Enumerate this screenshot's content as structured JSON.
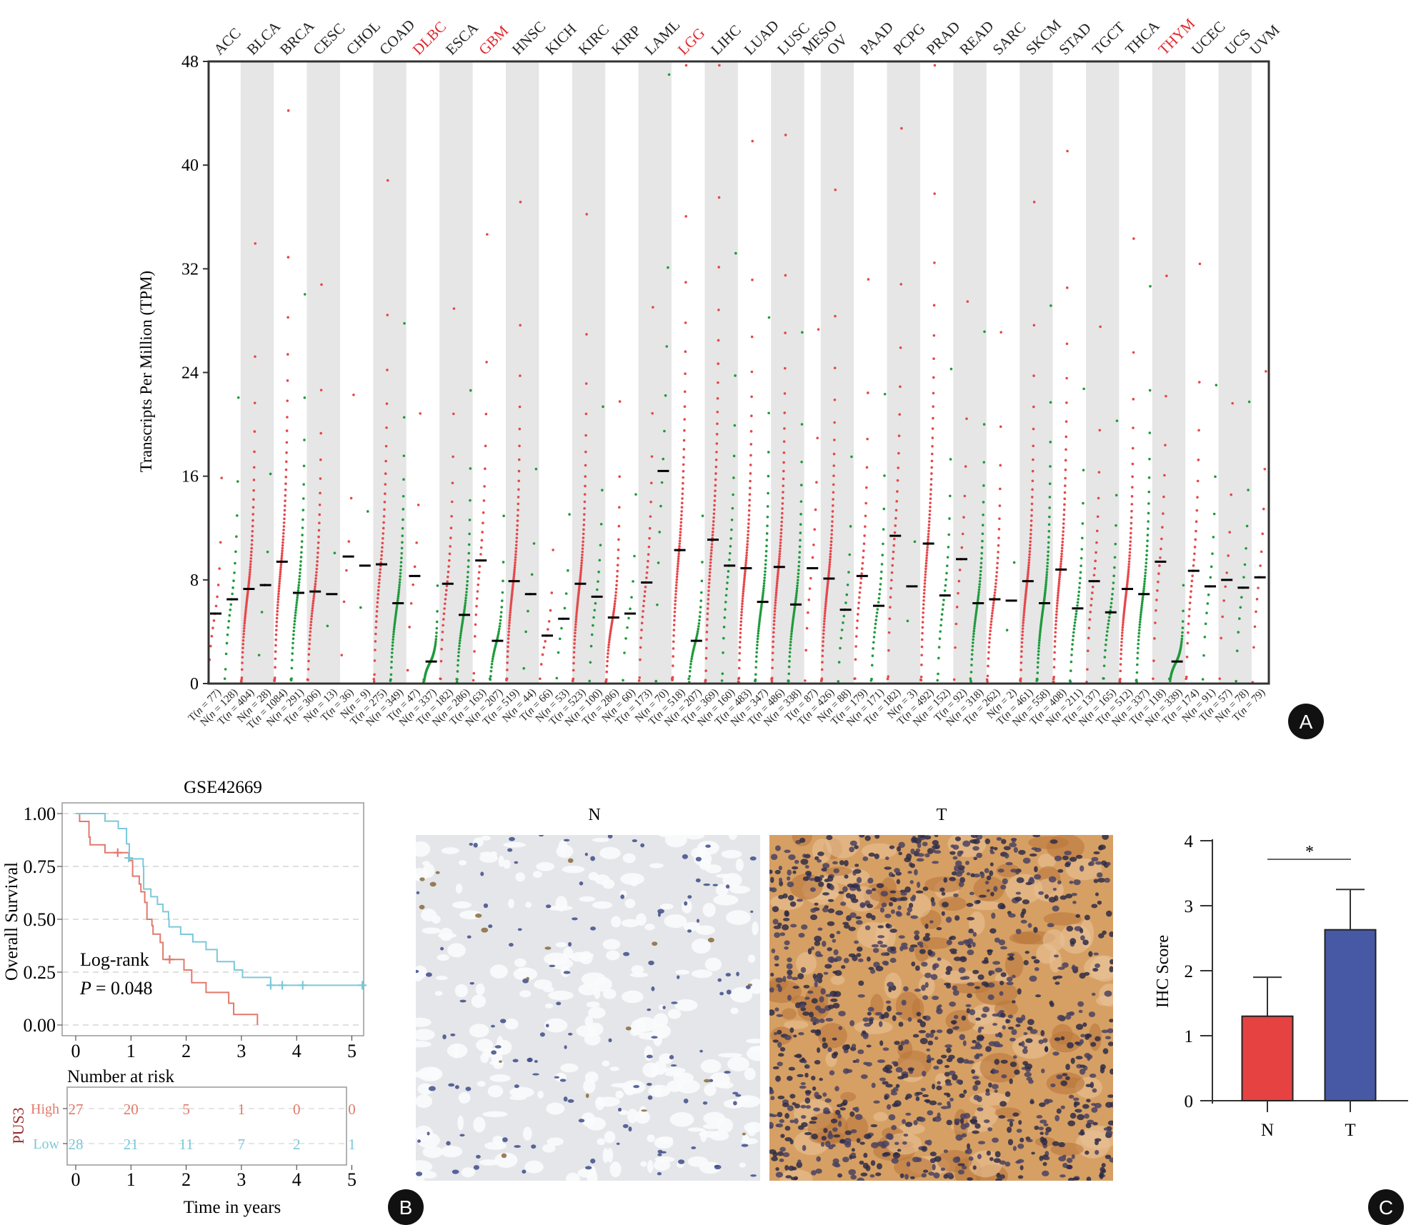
{
  "panel_labels": {
    "a": "A",
    "b": "B",
    "c": "C"
  },
  "colors": {
    "tumor": "#e5474b",
    "normal": "#1f9a3c",
    "highlight_label": "#e0262b",
    "shade": "#e6e6e6",
    "km_high": "#e07a6c",
    "km_low": "#7cc8d8",
    "bar_n": "#e64242",
    "bar_t": "#4758a4"
  },
  "chart_data": [
    {
      "type": "scatter",
      "ylabel": "Transcripts Per Million (TPM)",
      "ylim": [
        0,
        48
      ],
      "yticks": [
        "0",
        "8",
        "16",
        "24",
        "32",
        "40",
        "48"
      ],
      "grid": false,
      "cancers": [
        {
          "name": "ACC",
          "highlight": false
        },
        {
          "name": "BLCA",
          "highlight": false
        },
        {
          "name": "BRCA",
          "highlight": false
        },
        {
          "name": "CESC",
          "highlight": false
        },
        {
          "name": "CHOL",
          "highlight": false
        },
        {
          "name": "COAD",
          "highlight": false
        },
        {
          "name": "DLBC",
          "highlight": true
        },
        {
          "name": "ESCA",
          "highlight": false
        },
        {
          "name": "GBM",
          "highlight": true
        },
        {
          "name": "HNSC",
          "highlight": false
        },
        {
          "name": "KICH",
          "highlight": false
        },
        {
          "name": "KIRC",
          "highlight": false
        },
        {
          "name": "KIRP",
          "highlight": false
        },
        {
          "name": "LAML",
          "highlight": false
        },
        {
          "name": "LGG",
          "highlight": true
        },
        {
          "name": "LIHC",
          "highlight": false
        },
        {
          "name": "LUAD",
          "highlight": false
        },
        {
          "name": "LUSC",
          "highlight": false
        },
        {
          "name": "MESO",
          "highlight": false
        },
        {
          "name": "OV",
          "highlight": false
        },
        {
          "name": "PAAD",
          "highlight": false
        },
        {
          "name": "PCPG",
          "highlight": false
        },
        {
          "name": "PRAD",
          "highlight": false
        },
        {
          "name": "READ",
          "highlight": false
        },
        {
          "name": "SARC",
          "highlight": false
        },
        {
          "name": "SKCM",
          "highlight": false
        },
        {
          "name": "STAD",
          "highlight": false
        },
        {
          "name": "TGCT",
          "highlight": false
        },
        {
          "name": "THCA",
          "highlight": false
        },
        {
          "name": "THYM",
          "highlight": true
        },
        {
          "name": "UCEC",
          "highlight": false
        },
        {
          "name": "UCS",
          "highlight": false
        },
        {
          "name": "UVM",
          "highlight": false
        }
      ],
      "groups": [
        {
          "cancer": "ACC",
          "type": "T",
          "n": 77,
          "median": 5.4
        },
        {
          "cancer": "ACC",
          "type": "N",
          "n": 128,
          "median": 6.5
        },
        {
          "cancer": "BLCA",
          "type": "T",
          "n": 404,
          "median": 7.3
        },
        {
          "cancer": "BLCA",
          "type": "N",
          "n": 28,
          "median": 7.6
        },
        {
          "cancer": "BRCA",
          "type": "T",
          "n": 1084,
          "median": 9.4
        },
        {
          "cancer": "BRCA",
          "type": "N",
          "n": 291,
          "median": 7.0
        },
        {
          "cancer": "CESC",
          "type": "T",
          "n": 306,
          "median": 7.1
        },
        {
          "cancer": "CESC",
          "type": "N",
          "n": 13,
          "median": 6.9
        },
        {
          "cancer": "CHOL",
          "type": "T",
          "n": 36,
          "median": 9.8
        },
        {
          "cancer": "CHOL",
          "type": "N",
          "n": 9,
          "median": 9.1
        },
        {
          "cancer": "COAD",
          "type": "T",
          "n": 275,
          "median": 9.2
        },
        {
          "cancer": "COAD",
          "type": "N",
          "n": 349,
          "median": 6.2
        },
        {
          "cancer": "DLBC",
          "type": "T",
          "n": 47,
          "median": 8.3
        },
        {
          "cancer": "DLBC",
          "type": "N",
          "n": 337,
          "median": 1.7
        },
        {
          "cancer": "ESCA",
          "type": "T",
          "n": 182,
          "median": 7.7
        },
        {
          "cancer": "ESCA",
          "type": "N",
          "n": 286,
          "median": 5.3
        },
        {
          "cancer": "GBM",
          "type": "T",
          "n": 163,
          "median": 9.5
        },
        {
          "cancer": "GBM",
          "type": "N",
          "n": 207,
          "median": 3.3
        },
        {
          "cancer": "HNSC",
          "type": "T",
          "n": 519,
          "median": 7.9
        },
        {
          "cancer": "HNSC",
          "type": "N",
          "n": 44,
          "median": 6.9
        },
        {
          "cancer": "KICH",
          "type": "T",
          "n": 66,
          "median": 3.7
        },
        {
          "cancer": "KICH",
          "type": "N",
          "n": 53,
          "median": 5.0
        },
        {
          "cancer": "KIRC",
          "type": "T",
          "n": 523,
          "median": 7.7
        },
        {
          "cancer": "KIRC",
          "type": "N",
          "n": 100,
          "median": 6.7
        },
        {
          "cancer": "KIRP",
          "type": "T",
          "n": 286,
          "median": 5.1
        },
        {
          "cancer": "KIRP",
          "type": "N",
          "n": 60,
          "median": 5.4
        },
        {
          "cancer": "LAML",
          "type": "T",
          "n": 173,
          "median": 7.8
        },
        {
          "cancer": "LAML",
          "type": "N",
          "n": 70,
          "median": 16.4
        },
        {
          "cancer": "LGG",
          "type": "T",
          "n": 518,
          "median": 10.3
        },
        {
          "cancer": "LGG",
          "type": "N",
          "n": 207,
          "median": 3.3
        },
        {
          "cancer": "LIHC",
          "type": "T",
          "n": 369,
          "median": 11.1
        },
        {
          "cancer": "LIHC",
          "type": "N",
          "n": 160,
          "median": 9.1
        },
        {
          "cancer": "LUAD",
          "type": "T",
          "n": 483,
          "median": 8.9
        },
        {
          "cancer": "LUAD",
          "type": "N",
          "n": 347,
          "median": 6.3
        },
        {
          "cancer": "LUSC",
          "type": "T",
          "n": 486,
          "median": 9.0
        },
        {
          "cancer": "LUSC",
          "type": "N",
          "n": 338,
          "median": 6.1
        },
        {
          "cancer": "MESO",
          "type": "T",
          "n": 87,
          "median": 8.9
        },
        {
          "cancer": "OV",
          "type": "T",
          "n": 426,
          "median": 8.1
        },
        {
          "cancer": "OV",
          "type": "N",
          "n": 88,
          "median": 5.7
        },
        {
          "cancer": "PAAD",
          "type": "T",
          "n": 179,
          "median": 8.3
        },
        {
          "cancer": "PAAD",
          "type": "N",
          "n": 171,
          "median": 6.0
        },
        {
          "cancer": "PCPG",
          "type": "T",
          "n": 182,
          "median": 11.4
        },
        {
          "cancer": "PCPG",
          "type": "N",
          "n": 3,
          "median": 7.5
        },
        {
          "cancer": "PRAD",
          "type": "T",
          "n": 492,
          "median": 10.8
        },
        {
          "cancer": "PRAD",
          "type": "N",
          "n": 152,
          "median": 6.8
        },
        {
          "cancer": "READ",
          "type": "T",
          "n": 92,
          "median": 9.6
        },
        {
          "cancer": "READ",
          "type": "N",
          "n": 318,
          "median": 6.2
        },
        {
          "cancer": "SARC",
          "type": "T",
          "n": 262,
          "median": 6.5
        },
        {
          "cancer": "SARC",
          "type": "N",
          "n": 2,
          "median": 6.4
        },
        {
          "cancer": "SKCM",
          "type": "T",
          "n": 461,
          "median": 7.9
        },
        {
          "cancer": "SKCM",
          "type": "N",
          "n": 558,
          "median": 6.2
        },
        {
          "cancer": "STAD",
          "type": "T",
          "n": 408,
          "median": 8.8
        },
        {
          "cancer": "STAD",
          "type": "N",
          "n": 211,
          "median": 5.8
        },
        {
          "cancer": "TGCT",
          "type": "T",
          "n": 137,
          "median": 7.9
        },
        {
          "cancer": "TGCT",
          "type": "N",
          "n": 165,
          "median": 5.5
        },
        {
          "cancer": "THCA",
          "type": "T",
          "n": 512,
          "median": 7.3
        },
        {
          "cancer": "THCA",
          "type": "N",
          "n": 337,
          "median": 6.9
        },
        {
          "cancer": "THYM",
          "type": "T",
          "n": 118,
          "median": 9.4
        },
        {
          "cancer": "THYM",
          "type": "N",
          "n": 339,
          "median": 1.7
        },
        {
          "cancer": "UCEC",
          "type": "T",
          "n": 174,
          "median": 8.7
        },
        {
          "cancer": "UCEC",
          "type": "N",
          "n": 91,
          "median": 7.5
        },
        {
          "cancer": "UCS",
          "type": "T",
          "n": 57,
          "median": 8.0
        },
        {
          "cancer": "UCS",
          "type": "N",
          "n": 78,
          "median": 7.4
        },
        {
          "cancer": "UVM",
          "type": "T",
          "n": 79,
          "median": 8.2
        }
      ]
    },
    {
      "type": "line",
      "title": "GSE42669",
      "ylabel": "Overall Survival",
      "xlabel": "Time in years",
      "ylim": [
        0,
        1
      ],
      "yticks": [
        "0.00",
        "0.25",
        "0.50",
        "0.75",
        "1.00"
      ],
      "xticks": [
        "0",
        "1",
        "2",
        "3",
        "4",
        "5"
      ],
      "annotation": {
        "test": "Log-rank",
        "p_prefix": "P",
        "p_value": "= 0.048"
      },
      "series": [
        {
          "name": "High",
          "steps": [
            [
              0,
              1
            ],
            [
              0.07,
              0.963
            ],
            [
              0.24,
              0.889
            ],
            [
              0.26,
              0.852
            ],
            [
              0.53,
              0.815
            ],
            [
              0.97,
              0.778
            ],
            [
              1.03,
              0.704
            ],
            [
              1.15,
              0.667
            ],
            [
              1.18,
              0.63
            ],
            [
              1.25,
              0.58
            ],
            [
              1.29,
              0.5
            ],
            [
              1.38,
              0.47
            ],
            [
              1.4,
              0.43
            ],
            [
              1.53,
              0.39
            ],
            [
              1.58,
              0.31
            ],
            [
              1.96,
              0.26
            ],
            [
              2.1,
              0.2
            ],
            [
              2.36,
              0.154
            ],
            [
              2.77,
              0.103
            ],
            [
              2.86,
              0.05
            ],
            [
              3.29,
              0.0
            ]
          ],
          "censored": [
            [
              0.76,
              0.815
            ],
            [
              1.7,
              0.31
            ]
          ]
        },
        {
          "name": "Low",
          "steps": [
            [
              0,
              1
            ],
            [
              0.53,
              0.964
            ],
            [
              0.77,
              0.929
            ],
            [
              0.92,
              0.857
            ],
            [
              0.97,
              0.786
            ],
            [
              1.22,
              0.75
            ],
            [
              1.23,
              0.643
            ],
            [
              1.36,
              0.607
            ],
            [
              1.48,
              0.571
            ],
            [
              1.58,
              0.536
            ],
            [
              1.68,
              0.5
            ],
            [
              1.69,
              0.464
            ],
            [
              1.9,
              0.429
            ],
            [
              2.12,
              0.393
            ],
            [
              2.36,
              0.357
            ],
            [
              2.56,
              0.3
            ],
            [
              2.87,
              0.26
            ],
            [
              3.02,
              0.225
            ],
            [
              3.53,
              0.188
            ],
            [
              5.2,
              0.188
            ]
          ],
          "censored": [
            [
              0.96,
              0.79
            ],
            [
              3.53,
              0.188
            ],
            [
              3.74,
              0.188
            ],
            [
              4.11,
              0.188
            ],
            [
              5.19,
              0.188
            ]
          ]
        }
      ],
      "risk_table": {
        "title": "Number at risk",
        "strata_label": "PUS3",
        "times": [
          "0",
          "1",
          "2",
          "3",
          "4",
          "5"
        ],
        "rows": [
          {
            "label": "High",
            "values": [
              "27",
              "20",
              "5",
              "1",
              "0",
              "0"
            ]
          },
          {
            "label": "Low",
            "values": [
              "28",
              "21",
              "11",
              "7",
              "2",
              "1"
            ]
          }
        ]
      }
    },
    {
      "type": "bar",
      "ylabel": "IHC Score",
      "ylim": [
        0,
        4
      ],
      "yticks": [
        "0",
        "1",
        "2",
        "3",
        "4"
      ],
      "categories": [
        "N",
        "T"
      ],
      "values": [
        1.3,
        2.63
      ],
      "error_upper": [
        1.9,
        3.25
      ],
      "significance": "*"
    }
  ],
  "ihc_images": {
    "normal_label": "N",
    "tumor_label": "T"
  }
}
